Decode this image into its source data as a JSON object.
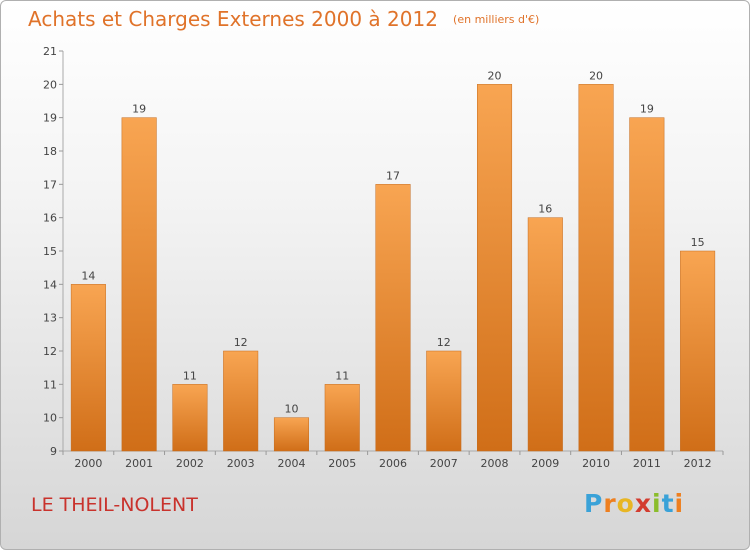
{
  "chart_data": {
    "type": "bar",
    "title": "Achats et Charges Externes 2000 à 2012",
    "subtitle": "(en milliers d'€)",
    "categories": [
      "2000",
      "2001",
      "2002",
      "2003",
      "2004",
      "2005",
      "2006",
      "2007",
      "2008",
      "2009",
      "2010",
      "2011",
      "2012"
    ],
    "values": [
      14,
      19,
      11,
      12,
      10,
      11,
      17,
      12,
      20,
      16,
      20,
      19,
      15
    ],
    "ylim": [
      9,
      21
    ],
    "yticks": [
      9,
      10,
      11,
      12,
      13,
      14,
      15,
      16,
      17,
      18,
      19,
      20,
      21
    ],
    "grid": false,
    "bar_color": "#f0913f"
  },
  "commune": "LE THEIL-NOLENT",
  "brand": {
    "letters": [
      "P",
      "r",
      "o",
      "x",
      "i",
      "t",
      "i"
    ],
    "colors": [
      "#3aa2d8",
      "#ee7f1f",
      "#e8b624",
      "#d33c2f",
      "#8bbd2c",
      "#3aa2d8",
      "#ee7f1f"
    ]
  },
  "colors": {
    "title": "#e0732a",
    "commune": "#c9322c"
  }
}
